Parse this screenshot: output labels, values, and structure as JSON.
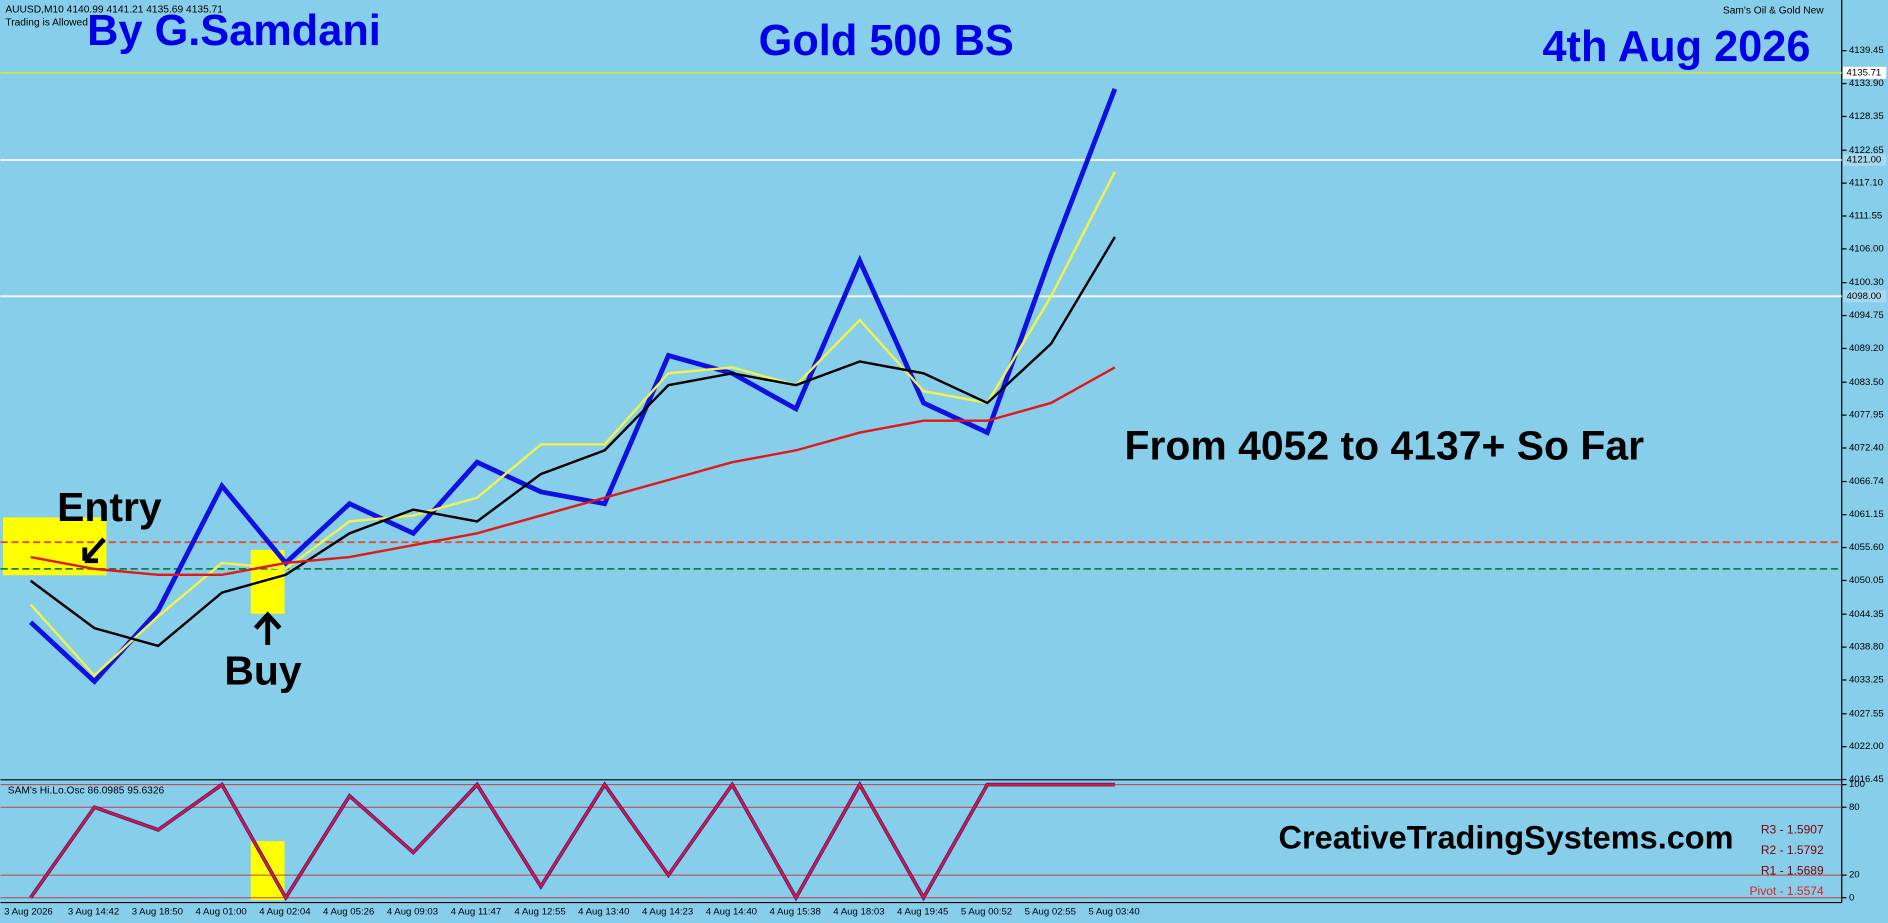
{
  "header": {
    "symbol": "AUUSD,M10 4140.99 4141.21 4135.69 4135.71",
    "status": "Trading is Allowed",
    "indicator_name": "Sam's Oil & Gold New"
  },
  "annotations": {
    "author": "By G.Samdani",
    "title": "Gold 500 BS",
    "date": "4th Aug 2026",
    "result": "From 4052 to 4137+ So Far",
    "entry": "Entry",
    "buy": "Buy",
    "website": "CreativeTradingSystems.com"
  },
  "chart_data": [
    {
      "type": "line",
      "categories": [
        "3 Aug 2026",
        "3 Aug 14:42",
        "3 Aug 18:50",
        "4 Aug 01:00",
        "4 Aug 02:04",
        "4 Aug 05:26",
        "4 Aug 09:03",
        "4 Aug 11:47",
        "4 Aug 12:55",
        "4 Aug 13:40",
        "4 Aug 14:23",
        "4 Aug 14:40",
        "4 Aug 15:38",
        "4 Aug 18:03",
        "4 Aug 19:45",
        "5 Aug 00:52",
        "5 Aug 02:55",
        "5 Aug 03:40"
      ],
      "series": [
        {
          "color": "#1010e0",
          "values": [
            4043,
            4033,
            4045,
            4066,
            4053,
            4063,
            4058,
            4070,
            4065,
            4063,
            4088,
            4085,
            4079,
            4104,
            4080,
            4075,
            4105,
            4133
          ]
        },
        {
          "color": "#f2f24a",
          "values": [
            4046,
            4034,
            4044,
            4053,
            4052,
            4060,
            4061,
            4064,
            4073,
            4073,
            4085,
            4086,
            4083,
            4094,
            4082,
            4080,
            4098,
            4119
          ]
        },
        {
          "color": "#000000",
          "values": [
            4050,
            4042,
            4039,
            4048,
            4051,
            4058,
            4062,
            4060,
            4068,
            4072,
            4083,
            4085,
            4083,
            4087,
            4085,
            4080,
            4090,
            4108
          ]
        },
        {
          "color": "#e01818",
          "values": [
            4054,
            4052,
            4051,
            4051,
            4053,
            4054,
            4056,
            4058,
            4061,
            4064,
            4067,
            4070,
            4072,
            4075,
            4077,
            4077,
            4080,
            4086
          ]
        }
      ],
      "ylim": [
        4016,
        4148
      ],
      "yticks": [
        4139.45,
        {
          "value": 4133.9,
          "label": "4133.90"
        },
        4128.35,
        4122.65,
        {
          "value": 4117.1,
          "label": "4117.10"
        },
        4111.55,
        {
          "value": 4106,
          "label": "4106.00"
        },
        {
          "value": 4100.3,
          "label": "4100.30"
        },
        4094.75,
        {
          "value": 4089.2,
          "label": "4089.20"
        },
        {
          "value": 4083.5,
          "label": "4083.50"
        },
        4077.95,
        {
          "value": 4072.4,
          "label": "4072.40"
        },
        4066.74,
        4061.15,
        {
          "value": 4055.6,
          "label": "4055.60"
        },
        4050.05,
        4044.35,
        {
          "value": 4038.8,
          "label": "4038.80"
        },
        4033.25,
        4027.55,
        {
          "value": 4022,
          "label": "4022.00"
        },
        4016.45
      ],
      "price_lines": [
        {
          "value": 4135.71,
          "color": "#c8e84a"
        },
        {
          "value": 4121,
          "label": "4121.00",
          "color": "#ffffff"
        },
        {
          "value": 4098,
          "label": "4098.00",
          "color": "#ffffff"
        },
        {
          "value": 4056.5,
          "color": "#e05030"
        },
        {
          "value": 4052,
          "color": "#108040"
        }
      ]
    },
    {
      "type": "line",
      "title": "SAM's Hi.Lo.Osc 86.0985 95.6326",
      "series": [
        {
          "color": "#e01818",
          "values": [
            0,
            80,
            60,
            100,
            0,
            90,
            40,
            100,
            10,
            100,
            20,
            100,
            0,
            100,
            0,
            100,
            100,
            100
          ]
        }
      ],
      "ylim": [
        0,
        100
      ],
      "yticks": [
        0,
        20,
        80,
        100
      ],
      "pivots": [
        "R3 - 1.5907",
        "R2 - 1.5792",
        "R1 - 1.5689",
        "Pivot - 1.5574"
      ]
    }
  ]
}
